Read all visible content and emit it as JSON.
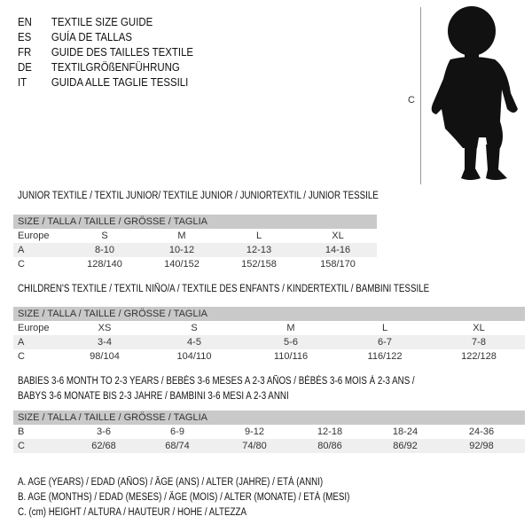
{
  "languages": [
    {
      "code": "EN",
      "text": "TEXTILE SIZE GUIDE"
    },
    {
      "code": "ES",
      "text": "GUÍA DE TALLAS"
    },
    {
      "code": "FR",
      "text": "GUIDE DES TAILLES TEXTILE"
    },
    {
      "code": "DE",
      "text": "TEXTILGRÖßENFÜHRUNG"
    },
    {
      "code": "IT",
      "text": "GUIDA ALLE TAGLIE TESSILI"
    }
  ],
  "figure": {
    "height_label": "C"
  },
  "tables": [
    {
      "title": "JUNIOR TEXTILE / TEXTIL JUNIOR/ TEXTILE JUNIOR / JUNIORTEXTIL / JUNIOR TESSILE",
      "header": "SIZE / TALLA / TAILLE / GRÖSSE / TAGLIA",
      "rows": [
        {
          "label": "Europe",
          "values": [
            "S",
            "M",
            "L",
            "XL"
          ]
        },
        {
          "label": "A",
          "values": [
            "8-10",
            "10-12",
            "12-13",
            "14-16"
          ]
        },
        {
          "label": "C",
          "values": [
            "128/140",
            "140/152",
            "152/158",
            "158/170"
          ]
        }
      ]
    },
    {
      "title": "CHILDREN'S TEXTILE / TEXTIL NIÑO/A / TEXTILE DES ENFANTS / KINDERTEXTIL / BAMBINI TESSILE",
      "header": "SIZE / TALLA / TAILLE / GRÖSSE / TAGLIA",
      "rows": [
        {
          "label": "Europe",
          "values": [
            "XS",
            "S",
            "M",
            "L",
            "XL"
          ]
        },
        {
          "label": "A",
          "values": [
            "3-4",
            "4-5",
            "5-6",
            "6-7",
            "7-8"
          ]
        },
        {
          "label": "C",
          "values": [
            "98/104",
            "104/110",
            "110/116",
            "116/122",
            "122/128"
          ]
        }
      ]
    },
    {
      "title": "BABIES 3-6 MONTH TO 2-3 YEARS / BEBÉS 3-6 MESES A 2-3 AÑOS / BÉBÉS 3-6 MOIS À 2-3 ANS /",
      "title2": "BABYS 3-6 MONATE BIS 2-3 JAHRE / BAMBINI 3-6 MESI A 2-3 ANNI",
      "header": "SIZE / TALLA / TAILLE / GRÖSSE / TAGLIA",
      "rows": [
        {
          "label": "B",
          "values": [
            "3-6",
            "6-9",
            "9-12",
            "12-18",
            "18-24",
            "24-36"
          ]
        },
        {
          "label": "C",
          "values": [
            "62/68",
            "68/74",
            "74/80",
            "80/86",
            "86/92",
            "92/98"
          ]
        }
      ]
    }
  ],
  "legend": [
    "A. AGE (YEARS) / EDAD (AÑOS) / ÂGE (ANS) / ALTER (JAHRE) / ETÀ (ANNI)",
    "B. AGE (MONTHS) / EDAD (MESES) / ÂGE (MOIS) / ALTER (MONATE) / ETÀ (MESI)",
    "C. (cm) HEIGHT / ALTURA / HAUTEUR / HÖHE / ALTEZZA"
  ]
}
